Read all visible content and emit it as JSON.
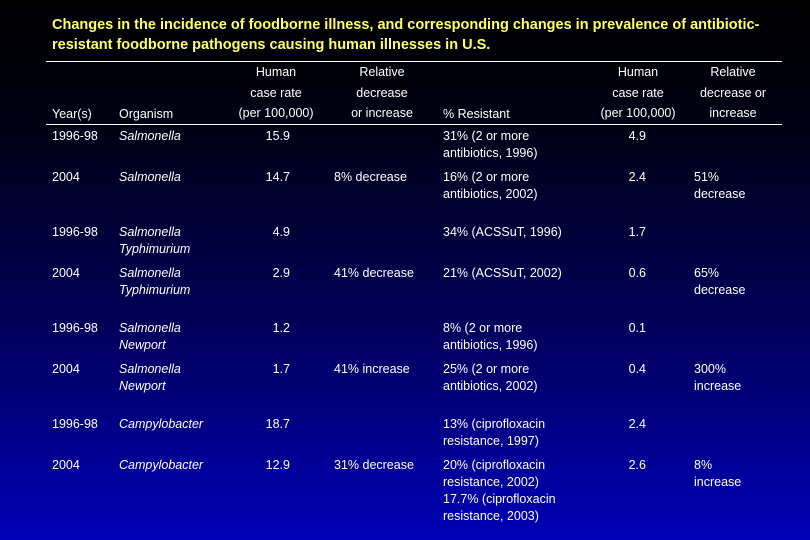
{
  "title": "Changes in the incidence of foodborne illness, and corresponding changes in prevalence of antibiotic-resistant foodborne pathogens causing human illnesses in U.S.",
  "headers": {
    "year": "Year(s)",
    "organism": "Organism",
    "case_rate_1": "Human\ncase rate\n(per 100,000)",
    "relative_1": "Relative\ndecrease\nor increase",
    "resistant": "% Resistant",
    "case_rate_2": "Human\ncase rate\n(per 100,000)",
    "relative_2": "Relative\ndecrease or\nincrease"
  },
  "rows": [
    {
      "year": "1996-98",
      "organism": "Salmonella",
      "rate1": "15.9",
      "rel1": "",
      "resistant": "31% (2 or more\nantibiotics, 1996)",
      "rate2": "4.9",
      "rel2": ""
    },
    {
      "year": "2004",
      "organism": "Salmonella",
      "rate1": "14.7",
      "rel1": "8% decrease",
      "resistant": "16% (2 or more\nantibiotics, 2002)",
      "rate2": "2.4",
      "rel2": "51%\ndecrease"
    },
    {
      "year": "1996-98",
      "organism": "Salmonella\nTyphimurium",
      "rate1": "4.9",
      "rel1": "",
      "resistant": "34% (ACSSuT, 1996)",
      "rate2": "1.7",
      "rel2": ""
    },
    {
      "year": "2004",
      "organism": "Salmonella\nTyphimurium",
      "rate1": "2.9",
      "rel1": "41% decrease",
      "resistant": "21% (ACSSuT, 2002)",
      "rate2": "0.6",
      "rel2": "65%\ndecrease"
    },
    {
      "year": "1996-98",
      "organism": "Salmonella\nNewport",
      "rate1": "1.2",
      "rel1": "",
      "resistant": "8% (2 or more\nantibiotics, 1996)",
      "rate2": "0.1",
      "rel2": ""
    },
    {
      "year": "2004",
      "organism": "Salmonella\nNewport",
      "rate1": "1.7",
      "rel1": "41% increase",
      "resistant": "25% (2 or more\nantibiotics, 2002)",
      "rate2": "0.4",
      "rel2": "300%\nincrease"
    },
    {
      "year": "1996-98",
      "organism": "Campylobacter",
      "rate1": "18.7",
      "rel1": "",
      "resistant": "13% (ciprofloxacin\nresistance, 1997)",
      "rate2": "2.4",
      "rel2": ""
    },
    {
      "year": "2004",
      "organism": "Campylobacter",
      "rate1": "12.9",
      "rel1": "31% decrease",
      "resistant": "20% (ciprofloxacin\nresistance, 2002)\n17.7% (ciprofloxacin\nresistance, 2003)",
      "rate2": "2.6",
      "rel2": "8%\nincrease"
    }
  ]
}
